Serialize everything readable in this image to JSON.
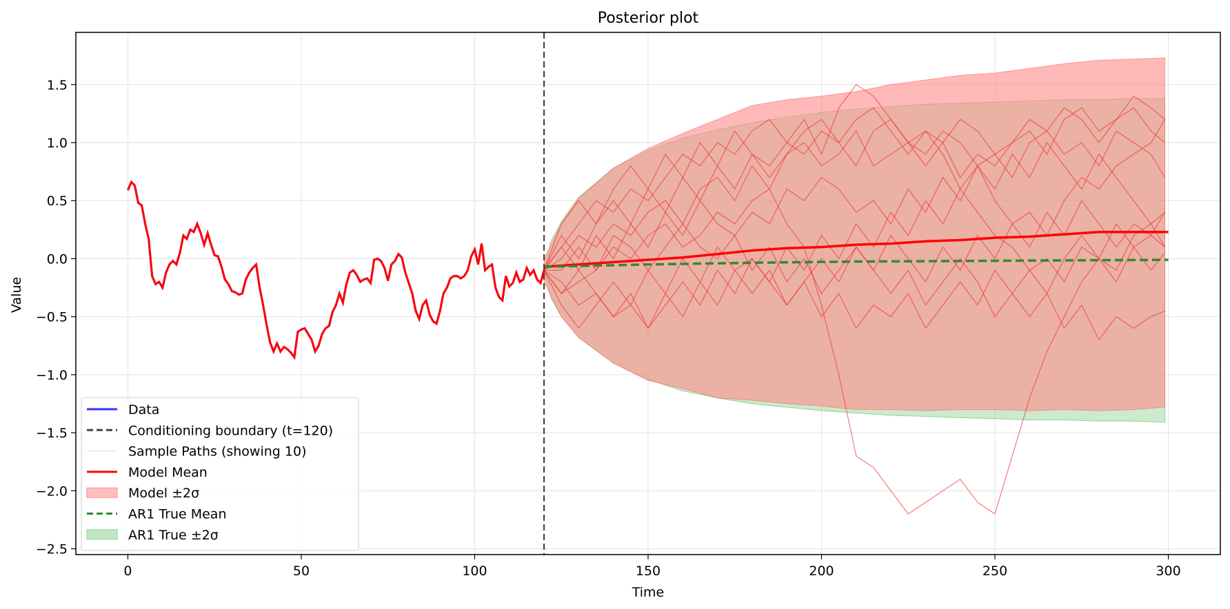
{
  "chart_data": {
    "type": "line",
    "title": "Posterior plot",
    "xlabel": "Time",
    "ylabel": "Value",
    "xlim": [
      -15,
      315
    ],
    "ylim": [
      -2.55,
      1.95
    ],
    "xticks": [
      0,
      50,
      100,
      150,
      200,
      250,
      300
    ],
    "xtick_labels": [
      "0",
      "50",
      "100",
      "150",
      "200",
      "250",
      "300"
    ],
    "yticks": [
      -2.5,
      -2.0,
      -1.5,
      -1.0,
      -0.5,
      0.0,
      0.5,
      1.0,
      1.5
    ],
    "ytick_labels": [
      "−2.5",
      "−2.0",
      "−1.5",
      "−1.0",
      "−0.5",
      "0.0",
      "0.5",
      "1.0",
      "1.5"
    ],
    "grid": true,
    "legend_position": "lower-left",
    "colors": {
      "data": "#3333ff",
      "boundary": "#444444",
      "sample": "#ee3333",
      "model_mean": "#ff0000",
      "model_band": "#ff8a8a",
      "ar1_mean": "#2e8b2e",
      "ar1_band": "#8fd08f"
    },
    "boundary_x": 120,
    "data_series": {
      "name": "Data",
      "x": [
        0,
        1,
        2,
        3,
        4,
        5,
        6,
        7,
        8,
        9,
        10,
        11,
        12,
        13,
        14,
        15,
        16,
        17,
        18,
        19,
        20,
        21,
        22,
        23,
        24,
        25,
        26,
        27,
        28,
        29,
        30,
        31,
        32,
        33,
        34,
        35,
        36,
        37,
        38,
        39,
        40,
        41,
        42,
        43,
        44,
        45,
        46,
        47,
        48,
        49,
        50,
        51,
        52,
        53,
        54,
        55,
        56,
        57,
        58,
        59,
        60,
        61,
        62,
        63,
        64,
        65,
        66,
        67,
        68,
        69,
        70,
        71,
        72,
        73,
        74,
        75,
        76,
        77,
        78,
        79,
        80,
        81,
        82,
        83,
        84,
        85,
        86,
        87,
        88,
        89,
        90,
        91,
        92,
        93,
        94,
        95,
        96,
        97,
        98,
        99,
        100,
        101,
        102,
        103,
        104,
        105,
        106,
        107,
        108,
        109,
        110,
        111,
        112,
        113,
        114,
        115,
        116,
        117,
        118,
        119,
        120
      ],
      "values": [
        0.59,
        0.66,
        0.63,
        0.48,
        0.46,
        0.3,
        0.17,
        -0.15,
        -0.22,
        -0.2,
        -0.25,
        -0.12,
        -0.05,
        -0.02,
        -0.05,
        0.05,
        0.2,
        0.17,
        0.25,
        0.23,
        0.3,
        0.22,
        0.12,
        0.22,
        0.12,
        0.03,
        0.02,
        -0.07,
        -0.18,
        -0.22,
        -0.28,
        -0.29,
        -0.31,
        -0.3,
        -0.18,
        -0.12,
        -0.08,
        -0.05,
        -0.25,
        -0.4,
        -0.57,
        -0.72,
        -0.8,
        -0.73,
        -0.8,
        -0.76,
        -0.78,
        -0.81,
        -0.85,
        -0.63,
        -0.61,
        -0.6,
        -0.65,
        -0.7,
        -0.8,
        -0.75,
        -0.65,
        -0.6,
        -0.58,
        -0.46,
        -0.4,
        -0.3,
        -0.38,
        -0.22,
        -0.12,
        -0.1,
        -0.14,
        -0.2,
        -0.18,
        -0.17,
        -0.21,
        -0.01,
        0.0,
        -0.02,
        -0.08,
        -0.19,
        -0.05,
        -0.02,
        0.04,
        0.01,
        -0.12,
        -0.21,
        -0.3,
        -0.45,
        -0.52,
        -0.4,
        -0.36,
        -0.48,
        -0.54,
        -0.56,
        -0.45,
        -0.3,
        -0.25,
        -0.17,
        -0.15,
        -0.15,
        -0.17,
        -0.15,
        -0.1,
        0.02,
        0.08,
        -0.05,
        0.13,
        -0.1,
        -0.07,
        -0.05,
        -0.25,
        -0.33,
        -0.36,
        -0.15,
        -0.24,
        -0.21,
        -0.12,
        -0.2,
        -0.18,
        -0.08,
        -0.14,
        -0.1,
        -0.18,
        -0.21,
        -0.1
      ]
    },
    "model_mean": {
      "name": "Model Mean",
      "x": [
        120,
        130,
        140,
        150,
        160,
        170,
        180,
        190,
        200,
        210,
        220,
        230,
        240,
        250,
        260,
        270,
        280,
        290,
        300
      ],
      "values": [
        -0.07,
        -0.05,
        -0.03,
        -0.01,
        0.01,
        0.04,
        0.07,
        0.09,
        0.1,
        0.12,
        0.13,
        0.15,
        0.16,
        0.18,
        0.19,
        0.21,
        0.23,
        0.23,
        0.23
      ]
    },
    "model_band": {
      "name": "Model ±2σ",
      "x": [
        120,
        125,
        130,
        140,
        150,
        160,
        170,
        180,
        190,
        200,
        210,
        220,
        230,
        240,
        250,
        260,
        270,
        280,
        290,
        299
      ],
      "upper": [
        0.0,
        0.3,
        0.52,
        0.78,
        0.95,
        1.08,
        1.2,
        1.32,
        1.37,
        1.4,
        1.44,
        1.5,
        1.54,
        1.58,
        1.6,
        1.64,
        1.68,
        1.71,
        1.72,
        1.73
      ],
      "lower": [
        -0.2,
        -0.5,
        -0.68,
        -0.9,
        -1.05,
        -1.12,
        -1.2,
        -1.22,
        -1.25,
        -1.27,
        -1.3,
        -1.3,
        -1.31,
        -1.3,
        -1.3,
        -1.31,
        -1.3,
        -1.31,
        -1.3,
        -1.28
      ]
    },
    "ar1_mean": {
      "name": "AR1 True Mean",
      "x": [
        120,
        150,
        180,
        210,
        240,
        270,
        300
      ],
      "values": [
        -0.07,
        -0.05,
        -0.035,
        -0.025,
        -0.02,
        -0.015,
        -0.01
      ]
    },
    "ar1_band": {
      "name": "AR1 True ±2σ",
      "x": [
        120,
        122,
        125,
        130,
        140,
        150,
        160,
        170,
        180,
        190,
        200,
        210,
        220,
        230,
        240,
        250,
        260,
        270,
        280,
        290,
        299
      ],
      "upper": [
        -0.1,
        0.15,
        0.32,
        0.53,
        0.78,
        0.93,
        1.04,
        1.11,
        1.17,
        1.22,
        1.26,
        1.29,
        1.31,
        1.33,
        1.34,
        1.35,
        1.36,
        1.37,
        1.37,
        1.38,
        1.38
      ],
      "lower": [
        -0.1,
        -0.34,
        -0.5,
        -0.68,
        -0.9,
        -1.04,
        -1.14,
        -1.2,
        -1.25,
        -1.28,
        -1.31,
        -1.33,
        -1.35,
        -1.36,
        -1.37,
        -1.38,
        -1.39,
        -1.39,
        -1.4,
        -1.4,
        -1.41
      ]
    },
    "sample_paths": {
      "name": "Sample Paths (showing 10)",
      "x": [
        120,
        125,
        130,
        135,
        140,
        145,
        150,
        155,
        160,
        165,
        170,
        175,
        180,
        185,
        190,
        195,
        200,
        205,
        210,
        215,
        220,
        225,
        230,
        235,
        240,
        245,
        250,
        255,
        260,
        265,
        270,
        275,
        280,
        285,
        290,
        295,
        299
      ],
      "paths": [
        [
          -0.1,
          0.1,
          0.3,
          0.5,
          0.4,
          0.6,
          0.5,
          0.7,
          0.9,
          0.8,
          1.0,
          0.9,
          1.1,
          1.2,
          1.0,
          1.2,
          0.9,
          1.3,
          1.5,
          1.4,
          1.2,
          1.0,
          0.8,
          1.0,
          0.7,
          0.9,
          0.8,
          1.0,
          1.1,
          0.9,
          1.2,
          1.3,
          1.1,
          1.2,
          1.4,
          1.3,
          1.2
        ],
        [
          -0.1,
          -0.3,
          -0.2,
          -0.1,
          0.1,
          0.0,
          0.2,
          0.3,
          0.1,
          0.2,
          0.4,
          0.3,
          0.5,
          0.6,
          0.3,
          0.1,
          -0.4,
          -1.0,
          -1.7,
          -1.8,
          -2.0,
          -2.2,
          -2.1,
          -2.0,
          -1.9,
          -2.1,
          -2.2,
          -1.7,
          -1.2,
          -0.8,
          -0.5,
          -0.2,
          0.0,
          -0.2,
          0.1,
          0.2,
          0.4
        ],
        [
          -0.1,
          0.0,
          0.2,
          0.1,
          0.3,
          0.2,
          0.4,
          0.5,
          0.3,
          0.6,
          0.7,
          0.5,
          0.8,
          0.6,
          0.9,
          1.0,
          0.8,
          0.9,
          1.1,
          0.8,
          0.9,
          1.0,
          1.1,
          0.9,
          0.6,
          0.8,
          0.5,
          0.3,
          0.4,
          0.2,
          0.5,
          0.7,
          0.6,
          0.8,
          0.9,
          1.0,
          1.2
        ],
        [
          -0.1,
          -0.2,
          -0.4,
          -0.3,
          -0.5,
          -0.4,
          -0.6,
          -0.3,
          -0.5,
          -0.2,
          -0.4,
          -0.1,
          0.0,
          -0.2,
          0.1,
          -0.1,
          0.2,
          0.0,
          0.3,
          0.1,
          0.4,
          0.2,
          0.5,
          0.3,
          0.6,
          0.4,
          0.2,
          0.1,
          -0.1,
          0.0,
          -0.2,
          0.1,
          0.0,
          -0.1,
          0.2,
          0.3,
          0.4
        ],
        [
          -0.1,
          0.2,
          0.0,
          0.3,
          0.5,
          0.3,
          0.6,
          0.4,
          0.7,
          0.5,
          0.8,
          0.6,
          0.9,
          0.8,
          1.0,
          0.9,
          1.1,
          1.0,
          0.8,
          1.1,
          1.2,
          1.0,
          0.9,
          1.1,
          1.0,
          0.8,
          0.9,
          0.7,
          1.0,
          1.1,
          0.9,
          1.0,
          0.8,
          1.1,
          1.0,
          0.9,
          0.7
        ],
        [
          -0.1,
          -0.4,
          -0.6,
          -0.4,
          -0.2,
          -0.4,
          -0.1,
          -0.3,
          0.0,
          -0.2,
          0.1,
          -0.1,
          -0.3,
          -0.1,
          -0.4,
          -0.2,
          -0.5,
          -0.3,
          -0.6,
          -0.4,
          -0.5,
          -0.3,
          -0.6,
          -0.4,
          -0.2,
          -0.4,
          -0.1,
          -0.3,
          -0.5,
          -0.3,
          -0.6,
          -0.4,
          -0.7,
          -0.5,
          -0.6,
          -0.5,
          -0.45
        ],
        [
          -0.1,
          0.1,
          -0.1,
          0.2,
          0.0,
          0.3,
          0.1,
          0.4,
          0.2,
          0.5,
          0.3,
          0.2,
          0.4,
          0.3,
          0.6,
          0.5,
          0.7,
          0.6,
          0.4,
          0.5,
          0.3,
          0.6,
          0.4,
          0.7,
          0.5,
          0.8,
          0.6,
          0.9,
          0.7,
          1.0,
          0.8,
          0.6,
          0.9,
          0.7,
          0.5,
          0.3,
          0.1
        ],
        [
          -0.1,
          -0.1,
          0.1,
          -0.1,
          0.2,
          0.1,
          -0.1,
          0.1,
          0.3,
          0.1,
          0.0,
          0.2,
          -0.1,
          0.1,
          -0.2,
          0.0,
          -0.3,
          -0.1,
          0.1,
          -0.1,
          0.2,
          0.0,
          -0.2,
          0.1,
          -0.1,
          0.2,
          0.0,
          0.3,
          0.1,
          0.4,
          0.2,
          0.5,
          0.3,
          0.1,
          0.3,
          0.2,
          0.1
        ],
        [
          -0.1,
          0.3,
          0.5,
          0.3,
          0.6,
          0.8,
          0.6,
          0.9,
          0.7,
          1.0,
          0.8,
          1.1,
          0.9,
          0.7,
          0.9,
          1.1,
          1.2,
          1.0,
          1.2,
          1.3,
          1.1,
          0.9,
          1.1,
          1.0,
          1.2,
          1.1,
          0.9,
          1.0,
          1.2,
          1.1,
          1.3,
          1.2,
          1.0,
          1.2,
          1.3,
          1.1,
          1.0
        ],
        [
          -0.1,
          -0.3,
          -0.1,
          -0.3,
          -0.5,
          -0.3,
          -0.6,
          -0.4,
          -0.2,
          -0.4,
          -0.1,
          -0.3,
          0.0,
          -0.2,
          -0.4,
          -0.2,
          0.0,
          -0.2,
          0.1,
          -0.1,
          -0.3,
          -0.1,
          -0.4,
          -0.2,
          0.0,
          -0.2,
          -0.5,
          -0.3,
          -0.1,
          -0.3,
          0.0,
          0.2,
          0.0,
          0.3,
          0.1,
          -0.1,
          0.05
        ]
      ]
    },
    "legend": [
      {
        "label": "Data",
        "kind": "line",
        "color": "#3333ff"
      },
      {
        "label": "Conditioning boundary (t=120)",
        "kind": "dashed",
        "color": "#444444"
      },
      {
        "label": "Sample Paths (showing 10)",
        "kind": "thin",
        "color": "#ee3333"
      },
      {
        "label": "Model Mean",
        "kind": "line",
        "color": "#ff0000"
      },
      {
        "label": "Model ±2σ",
        "kind": "patch",
        "color": "#ff8a8a"
      },
      {
        "label": "AR1 True Mean",
        "kind": "dashed",
        "color": "#2e8b2e"
      },
      {
        "label": "AR1 True ±2σ",
        "kind": "patch",
        "color": "#8fd08f"
      }
    ]
  }
}
